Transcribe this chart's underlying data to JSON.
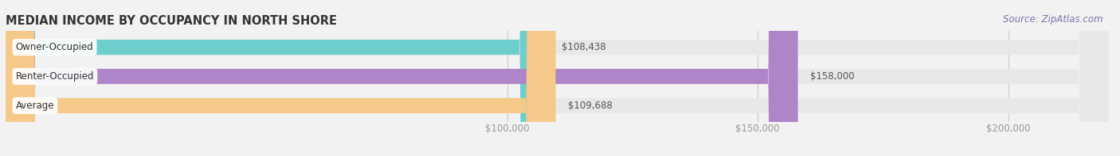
{
  "title": "MEDIAN INCOME BY OCCUPANCY IN NORTH SHORE",
  "source": "Source: ZipAtlas.com",
  "categories": [
    "Owner-Occupied",
    "Renter-Occupied",
    "Average"
  ],
  "values": [
    108438,
    158000,
    109688
  ],
  "bar_colors": [
    "#6ecece",
    "#ae85c9",
    "#f5c98a"
  ],
  "bar_labels": [
    "$108,438",
    "$158,000",
    "$109,688"
  ],
  "xlim": [
    0,
    220000
  ],
  "x_ticks": [
    100000,
    150000,
    200000
  ],
  "x_tick_labels": [
    "$100,000",
    "$150,000",
    "$200,000"
  ],
  "background_color": "#f2f2f2",
  "bar_bg_color": "#e8e8e8",
  "title_fontsize": 10.5,
  "label_fontsize": 8.5,
  "tick_fontsize": 8.5,
  "source_fontsize": 8.5,
  "bar_height": 0.52,
  "title_color": "#333333",
  "label_color": "#555555",
  "tick_color": "#999999",
  "source_color": "#7777aa"
}
